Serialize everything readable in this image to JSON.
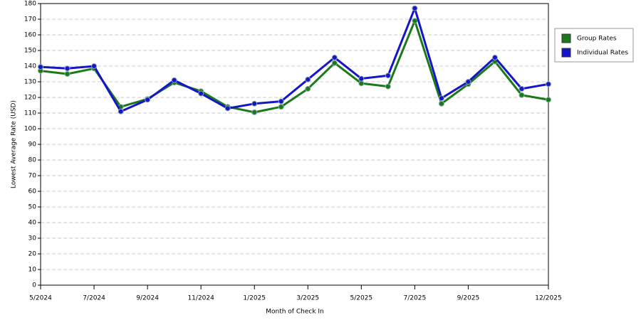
{
  "chart_data": {
    "type": "line",
    "x_label": "Month of Check In",
    "y_label": "Lowest Average Rate (USD)",
    "categories": [
      "5/2024",
      null,
      "7/2024",
      null,
      "9/2024",
      null,
      "11/2024",
      null,
      "1/2025",
      null,
      "3/2025",
      null,
      "5/2025",
      null,
      "7/2025",
      null,
      "9/2025",
      null,
      null,
      "12/2025"
    ],
    "series": [
      {
        "name": "Group Rates",
        "color": "#1a7a1a",
        "values": [
          137,
          135,
          138.5,
          114,
          119,
          129.5,
          124,
          114,
          110.5,
          114,
          125.5,
          142,
          129,
          127,
          169,
          116,
          128.5,
          143,
          121.5,
          118.5
        ]
      },
      {
        "name": "Individual Rates",
        "color": "#1616c8",
        "values": [
          139.5,
          138.5,
          140,
          111,
          118.5,
          131,
          122.5,
          113,
          116,
          117.5,
          131.5,
          145.5,
          132,
          134,
          177,
          119.5,
          130,
          145.5,
          125.5,
          128.5
        ]
      }
    ],
    "ylim": [
      0,
      180
    ],
    "yticks": [
      0,
      10,
      20,
      30,
      40,
      50,
      60,
      70,
      80,
      90,
      100,
      110,
      120,
      130,
      140,
      150,
      160,
      170,
      180
    ],
    "grid": true,
    "legend": "right"
  }
}
